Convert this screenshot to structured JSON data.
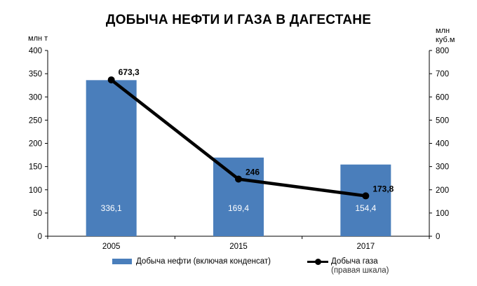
{
  "chart_data": {
    "type": "bar",
    "title": "ДОБЫЧА НЕФТИ И ГАЗА В ДАГЕСТАНЕ",
    "categories": [
      "2005",
      "2015",
      "2017"
    ],
    "left_axis": {
      "unit": "млн т",
      "min": 0,
      "max": 400,
      "ticks": [
        "0",
        "50",
        "100",
        "150",
        "200",
        "250",
        "300",
        "350",
        "400"
      ]
    },
    "right_axis": {
      "unit_line1": "млн",
      "unit_line2": "куб.м",
      "min": 0,
      "max": 800,
      "ticks": [
        "0",
        "100",
        "200",
        "300",
        "400",
        "500",
        "600",
        "700",
        "800"
      ]
    },
    "series": [
      {
        "name": "Добыча нефти (включая конденсат)",
        "type": "bar",
        "axis": "left",
        "values": [
          336.1,
          169.4,
          154.4
        ],
        "labels": [
          "336,1",
          "169,4",
          "154,4"
        ],
        "color": "#4a7ebb"
      },
      {
        "name": "Добыча газа",
        "name_note": "(правая шкала)",
        "type": "line",
        "axis": "right",
        "values": [
          673.3,
          246,
          173.8
        ],
        "labels": [
          "673,3",
          "246",
          "173,8"
        ],
        "color": "#000000"
      }
    ],
    "grid": false,
    "legend_position": "bottom"
  }
}
